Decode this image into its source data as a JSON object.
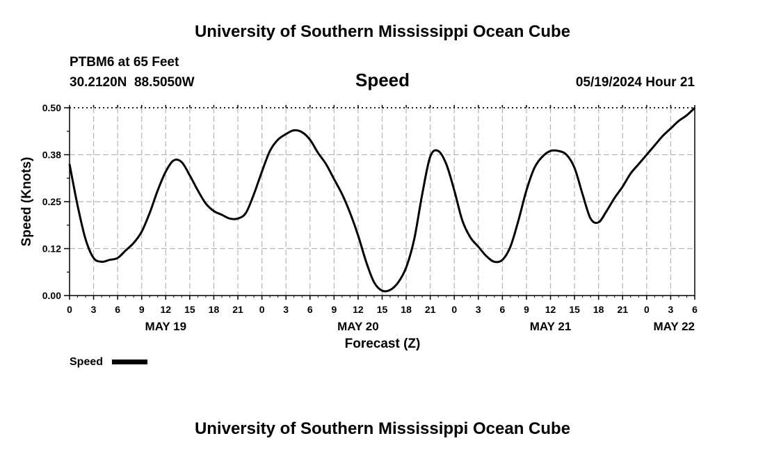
{
  "header": {
    "title": "University of Southern Mississippi Ocean Cube",
    "station": "PTBM6 at 65 Feet",
    "coordinates": "30.2120N  88.5050W",
    "variable": "Speed",
    "datetime": "05/19/2024 Hour 21"
  },
  "footer": {
    "title": "University of Southern Mississippi Ocean Cube"
  },
  "legend": {
    "label": "Speed"
  },
  "chart_data": {
    "type": "line",
    "xlabel": "Forecast (Z)",
    "ylabel": "Speed (Knots)",
    "xlim": [
      0,
      78
    ],
    "ylim": [
      0,
      0.5
    ],
    "yticks": [
      "0.00",
      "0.12",
      "0.25",
      "0.38",
      "0.50"
    ],
    "ytick_values": [
      0,
      0.125,
      0.25,
      0.375,
      0.5
    ],
    "xtick_labels": [
      "0",
      "3",
      "6",
      "9",
      "12",
      "15",
      "18",
      "21",
      "0",
      "3",
      "6",
      "9",
      "12",
      "15",
      "18",
      "21",
      "0",
      "3",
      "6",
      "9",
      "12",
      "15",
      "18",
      "21",
      "0",
      "3",
      "6"
    ],
    "day_labels": [
      {
        "label": "MAY 19",
        "hour": 12
      },
      {
        "label": "MAY 20",
        "hour": 36
      },
      {
        "label": "MAY 21",
        "hour": 60
      },
      {
        "label": "MAY 22",
        "hour": 78
      }
    ],
    "grid": true,
    "series": [
      {
        "name": "Speed",
        "color": "#000000",
        "x": [
          0,
          1,
          2,
          3,
          4,
          5,
          6,
          7,
          8,
          9,
          10,
          11,
          12,
          13,
          14,
          15,
          16,
          17,
          18,
          19,
          20,
          21,
          22,
          23,
          24,
          25,
          26,
          27,
          28,
          29,
          30,
          31,
          32,
          33,
          34,
          35,
          36,
          37,
          38,
          39,
          40,
          41,
          42,
          43,
          44,
          45,
          46,
          47,
          48,
          49,
          50,
          51,
          52,
          53,
          54,
          55,
          56,
          57,
          58,
          59,
          60,
          61,
          62,
          63,
          64,
          65,
          66,
          67,
          68,
          69,
          70,
          71,
          72,
          73,
          74,
          75,
          76,
          77,
          78
        ],
        "y": [
          0.35,
          0.24,
          0.15,
          0.1,
          0.09,
          0.095,
          0.1,
          0.12,
          0.14,
          0.17,
          0.22,
          0.28,
          0.33,
          0.36,
          0.355,
          0.32,
          0.28,
          0.245,
          0.225,
          0.215,
          0.205,
          0.205,
          0.22,
          0.27,
          0.33,
          0.385,
          0.415,
          0.43,
          0.44,
          0.435,
          0.415,
          0.38,
          0.35,
          0.31,
          0.27,
          0.22,
          0.16,
          0.09,
          0.035,
          0.013,
          0.015,
          0.035,
          0.075,
          0.15,
          0.27,
          0.37,
          0.385,
          0.35,
          0.28,
          0.2,
          0.155,
          0.13,
          0.105,
          0.09,
          0.095,
          0.13,
          0.2,
          0.28,
          0.34,
          0.37,
          0.385,
          0.385,
          0.375,
          0.34,
          0.27,
          0.205,
          0.195,
          0.225,
          0.26,
          0.29,
          0.325,
          0.35,
          0.375,
          0.4,
          0.425,
          0.445,
          0.465,
          0.48,
          0.5
        ]
      }
    ]
  }
}
